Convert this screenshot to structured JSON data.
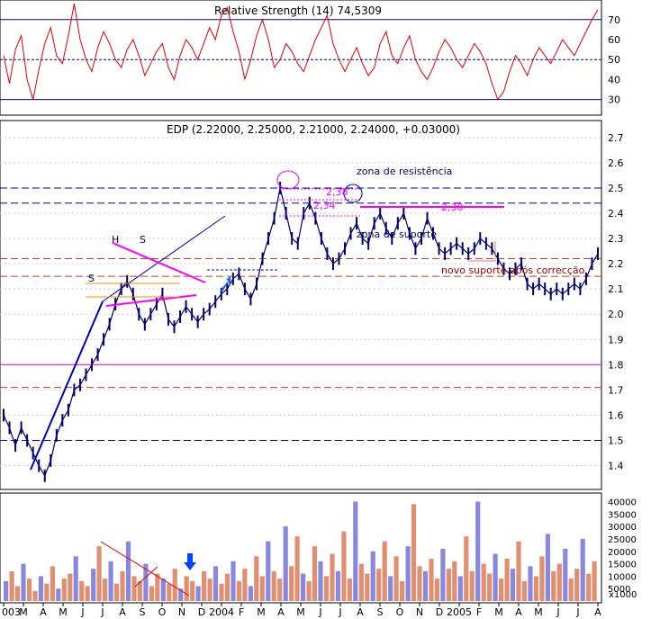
{
  "chart_data": [
    {
      "type": "line",
      "panel": "oscillator",
      "title": "Relative Strength (14) 74,5309",
      "ylim": [
        24,
        78
      ],
      "yticks": [
        30,
        40,
        50,
        60,
        70
      ],
      "reference_levels": [
        30,
        50,
        70
      ],
      "series": [
        {
          "values": [
            52,
            38,
            55,
            62,
            40,
            30,
            45,
            58,
            66,
            52,
            48,
            62,
            78,
            60,
            50,
            44,
            56,
            64,
            58,
            50,
            46,
            55,
            60,
            52,
            42,
            48,
            54,
            58,
            46,
            40,
            52,
            60,
            56,
            50,
            58,
            66,
            60,
            72,
            76,
            64,
            54,
            40,
            50,
            62,
            70,
            60,
            46,
            50,
            58,
            54,
            48,
            44,
            52,
            60,
            66,
            72,
            58,
            50,
            44,
            50,
            56,
            48,
            42,
            46,
            58,
            64,
            52,
            48,
            56,
            62,
            50,
            44,
            40,
            46,
            54,
            60,
            56,
            50,
            46,
            52,
            58,
            54,
            48,
            38,
            30,
            34,
            44,
            52,
            48,
            42,
            50,
            56,
            52,
            48,
            54,
            60,
            56,
            52,
            58,
            64,
            70,
            75
          ]
        }
      ]
    },
    {
      "type": "line",
      "panel": "price",
      "title": "EDP (2.22000, 2.25000, 2.21000, 2.24000, +0.03000)",
      "ylim": [
        1.32,
        2.76
      ],
      "yticks": [
        1.4,
        1.5,
        1.6,
        1.7,
        1.8,
        1.9,
        2.0,
        2.1,
        2.2,
        2.3,
        2.4,
        2.5,
        2.6,
        2.7
      ],
      "x_tick_labels": [
        "003",
        "M",
        "A",
        "M",
        "J",
        "J",
        "A",
        "S",
        "O",
        "N",
        "D",
        "2004",
        "F",
        "M",
        "A",
        "M",
        "J",
        "J",
        "A",
        "S",
        "O",
        "N",
        "D",
        "2005",
        "F",
        "M",
        "A",
        "M",
        "J",
        "J",
        "A"
      ],
      "series": [
        {
          "values": [
            1.6,
            1.55,
            1.48,
            1.55,
            1.5,
            1.45,
            1.4,
            1.36,
            1.42,
            1.52,
            1.58,
            1.62,
            1.7,
            1.72,
            1.76,
            1.8,
            1.84,
            1.9,
            1.96,
            2.04,
            2.1,
            2.13,
            2.08,
            2.0,
            1.96,
            2.0,
            2.04,
            2.08,
            1.98,
            1.95,
            1.99,
            2.03,
            2.0,
            1.97,
            2.0,
            2.02,
            2.05,
            2.08,
            2.1,
            2.14,
            2.16,
            2.1,
            2.06,
            2.12,
            2.22,
            2.3,
            2.38,
            2.5,
            2.4,
            2.3,
            2.28,
            2.4,
            2.44,
            2.38,
            2.3,
            2.24,
            2.2,
            2.22,
            2.26,
            2.32,
            2.36,
            2.3,
            2.28,
            2.36,
            2.4,
            2.34,
            2.3,
            2.36,
            2.4,
            2.32,
            2.26,
            2.3,
            2.38,
            2.32,
            2.26,
            2.24,
            2.26,
            2.28,
            2.26,
            2.24,
            2.26,
            2.3,
            2.28,
            2.26,
            2.22,
            2.18,
            2.16,
            2.18,
            2.2,
            2.12,
            2.1,
            2.12,
            2.1,
            2.08,
            2.1,
            2.08,
            2.1,
            2.12,
            2.1,
            2.14,
            2.2,
            2.24
          ]
        }
      ],
      "support_resistance_levels": [
        2.5,
        2.44,
        2.22,
        2.15,
        1.8,
        1.71,
        1.5
      ],
      "annotations": [
        {
          "text": "zona de resistência"
        },
        {
          "text": "zona de suporte"
        },
        {
          "text": "novo suporte após correcção"
        },
        {
          "text": "2,38"
        },
        {
          "text": "2,34"
        },
        {
          "text": "2,30"
        },
        {
          "text": "H"
        },
        {
          "text": "S"
        },
        {
          "text": "S"
        }
      ]
    },
    {
      "type": "bar",
      "panel": "volume",
      "yticks": [
        5000,
        10000,
        15000,
        20000,
        25000,
        30000,
        35000,
        40000
      ],
      "ylim": [
        0,
        42000
      ],
      "y_unit_label": "x1000",
      "series": [
        {
          "values": [
            8000,
            12000,
            6000,
            15000,
            9000,
            4000,
            10000,
            7000,
            14000,
            5000,
            9000,
            11000,
            18000,
            8000,
            6000,
            13000,
            22000,
            9000,
            16000,
            7000,
            12000,
            24000,
            10000,
            8000,
            15000,
            6000,
            11000,
            9000,
            7000,
            13000,
            5000,
            10000,
            8000,
            6000,
            12000,
            9000,
            14000,
            7000,
            11000,
            16000,
            8000,
            13000,
            6000,
            18000,
            10000,
            24000,
            12000,
            9000,
            30000,
            14000,
            26000,
            11000,
            8000,
            22000,
            16000,
            10000,
            19000,
            12000,
            28000,
            9000,
            40000,
            15000,
            11000,
            20000,
            13000,
            24000,
            10000,
            18000,
            8000,
            22000,
            39000,
            14000,
            12000,
            17000,
            9000,
            21000,
            13000,
            16000,
            10000,
            26000,
            12000,
            40000,
            15000,
            11000,
            19000,
            9000,
            17000,
            13000,
            24000,
            8000,
            14000,
            10000,
            18000,
            27000,
            12000,
            15000,
            21000,
            9000,
            13000,
            25000,
            11000,
            16000
          ]
        }
      ]
    }
  ]
}
